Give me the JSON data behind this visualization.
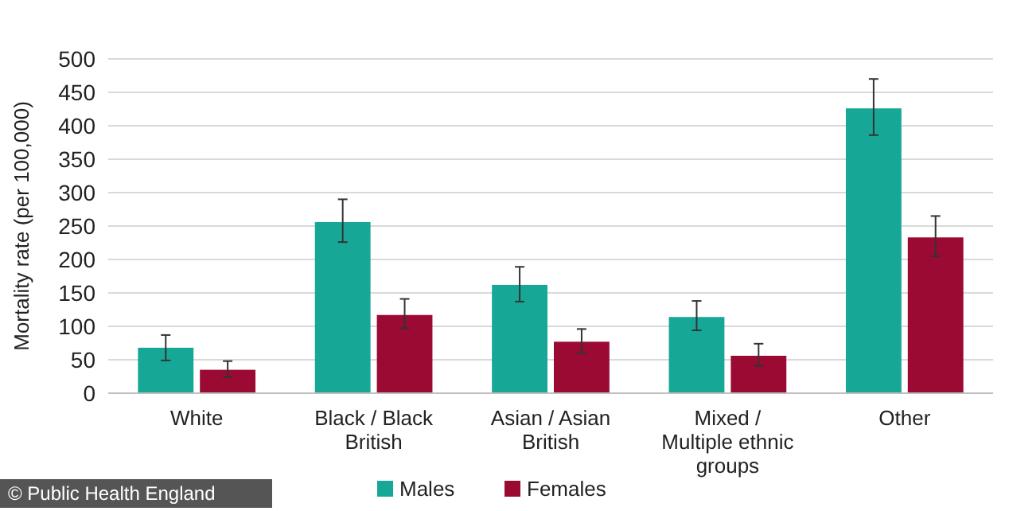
{
  "chart_data": {
    "type": "bar",
    "ylabel": "Mortality rate (per 100,000)",
    "categories": [
      "White",
      "Black / Black British",
      "Asian / Asian British",
      "Mixed / Multiple ethnic groups",
      "Other"
    ],
    "series": [
      {
        "name": "Males",
        "color": "#17a796",
        "values": [
          68,
          256,
          162,
          114,
          426
        ],
        "errors": [
          [
            49,
            87
          ],
          [
            226,
            290
          ],
          [
            137,
            189
          ],
          [
            94,
            138
          ],
          [
            386,
            470
          ]
        ]
      },
      {
        "name": "Females",
        "color": "#9a0a33",
        "values": [
          35,
          117,
          77,
          56,
          233
        ],
        "errors": [
          [
            24,
            48
          ],
          [
            97,
            141
          ],
          [
            60,
            96
          ],
          [
            41,
            74
          ],
          [
            205,
            265
          ]
        ]
      }
    ],
    "ylim": [
      0,
      500
    ],
    "yticks": [
      0,
      50,
      100,
      150,
      200,
      250,
      300,
      350,
      400,
      450,
      500
    ],
    "grid": "y",
    "legend": "bottom",
    "annotations": [
      "© Public Health England"
    ]
  }
}
